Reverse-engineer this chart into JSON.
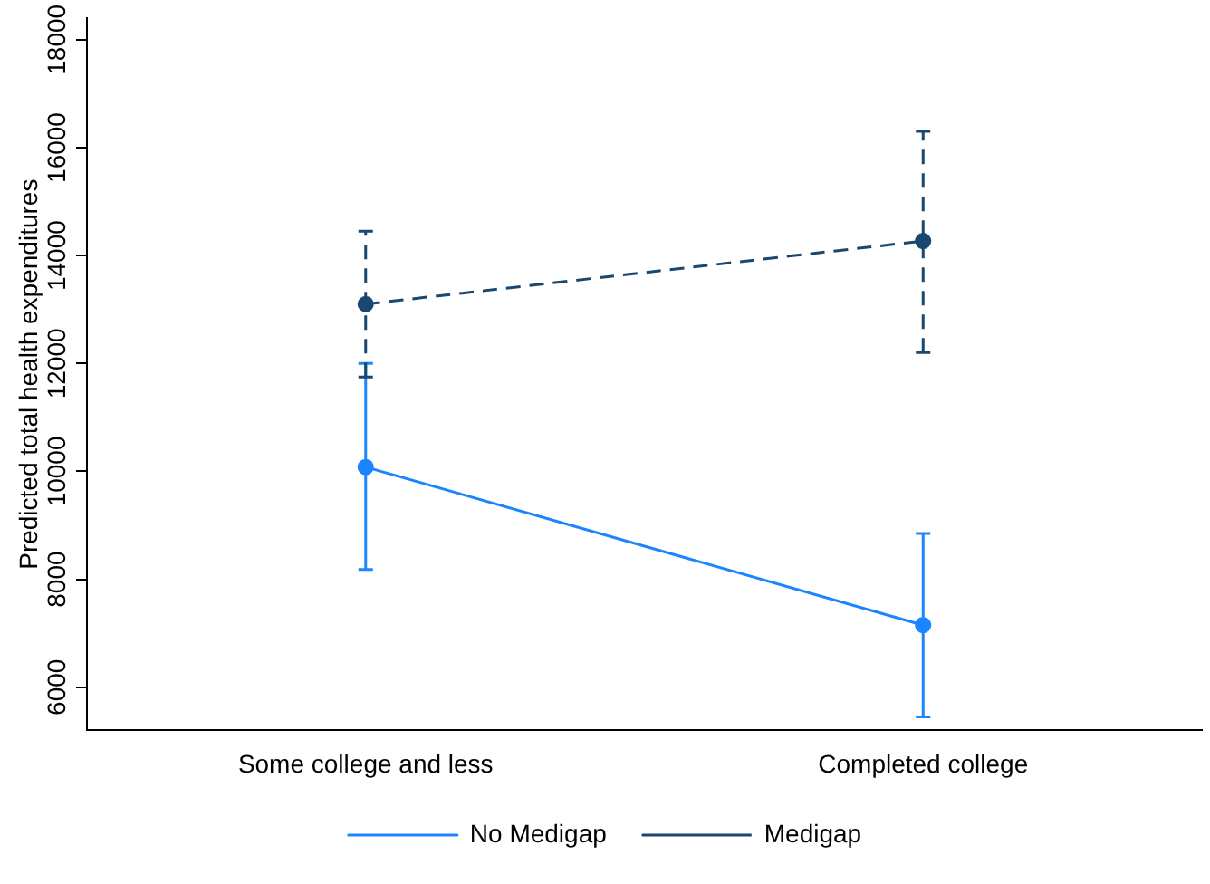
{
  "chart_data": {
    "type": "line",
    "ylabel": "Predicted total health expenditures",
    "categories": [
      "Some college and less",
      "Completed college"
    ],
    "series": [
      {
        "name": "No Medigap",
        "color": "#1a85ff",
        "values": [
          10080,
          7150
        ],
        "errors": [
          [
            8180,
            12000
          ],
          [
            5450,
            8850
          ]
        ],
        "line_style": "solid"
      },
      {
        "name": "Medigap",
        "color": "#1a476f",
        "values": [
          13100,
          14270
        ],
        "errors": [
          [
            11750,
            14450
          ],
          [
            12200,
            16300
          ]
        ],
        "line_style": "dashed"
      }
    ],
    "ylim": [
      5200,
      18400
    ],
    "yticks": [
      6000,
      8000,
      10000,
      12000,
      14000,
      16000,
      18000
    ],
    "grid": false,
    "legend": "bottom",
    "marker": "circle"
  }
}
